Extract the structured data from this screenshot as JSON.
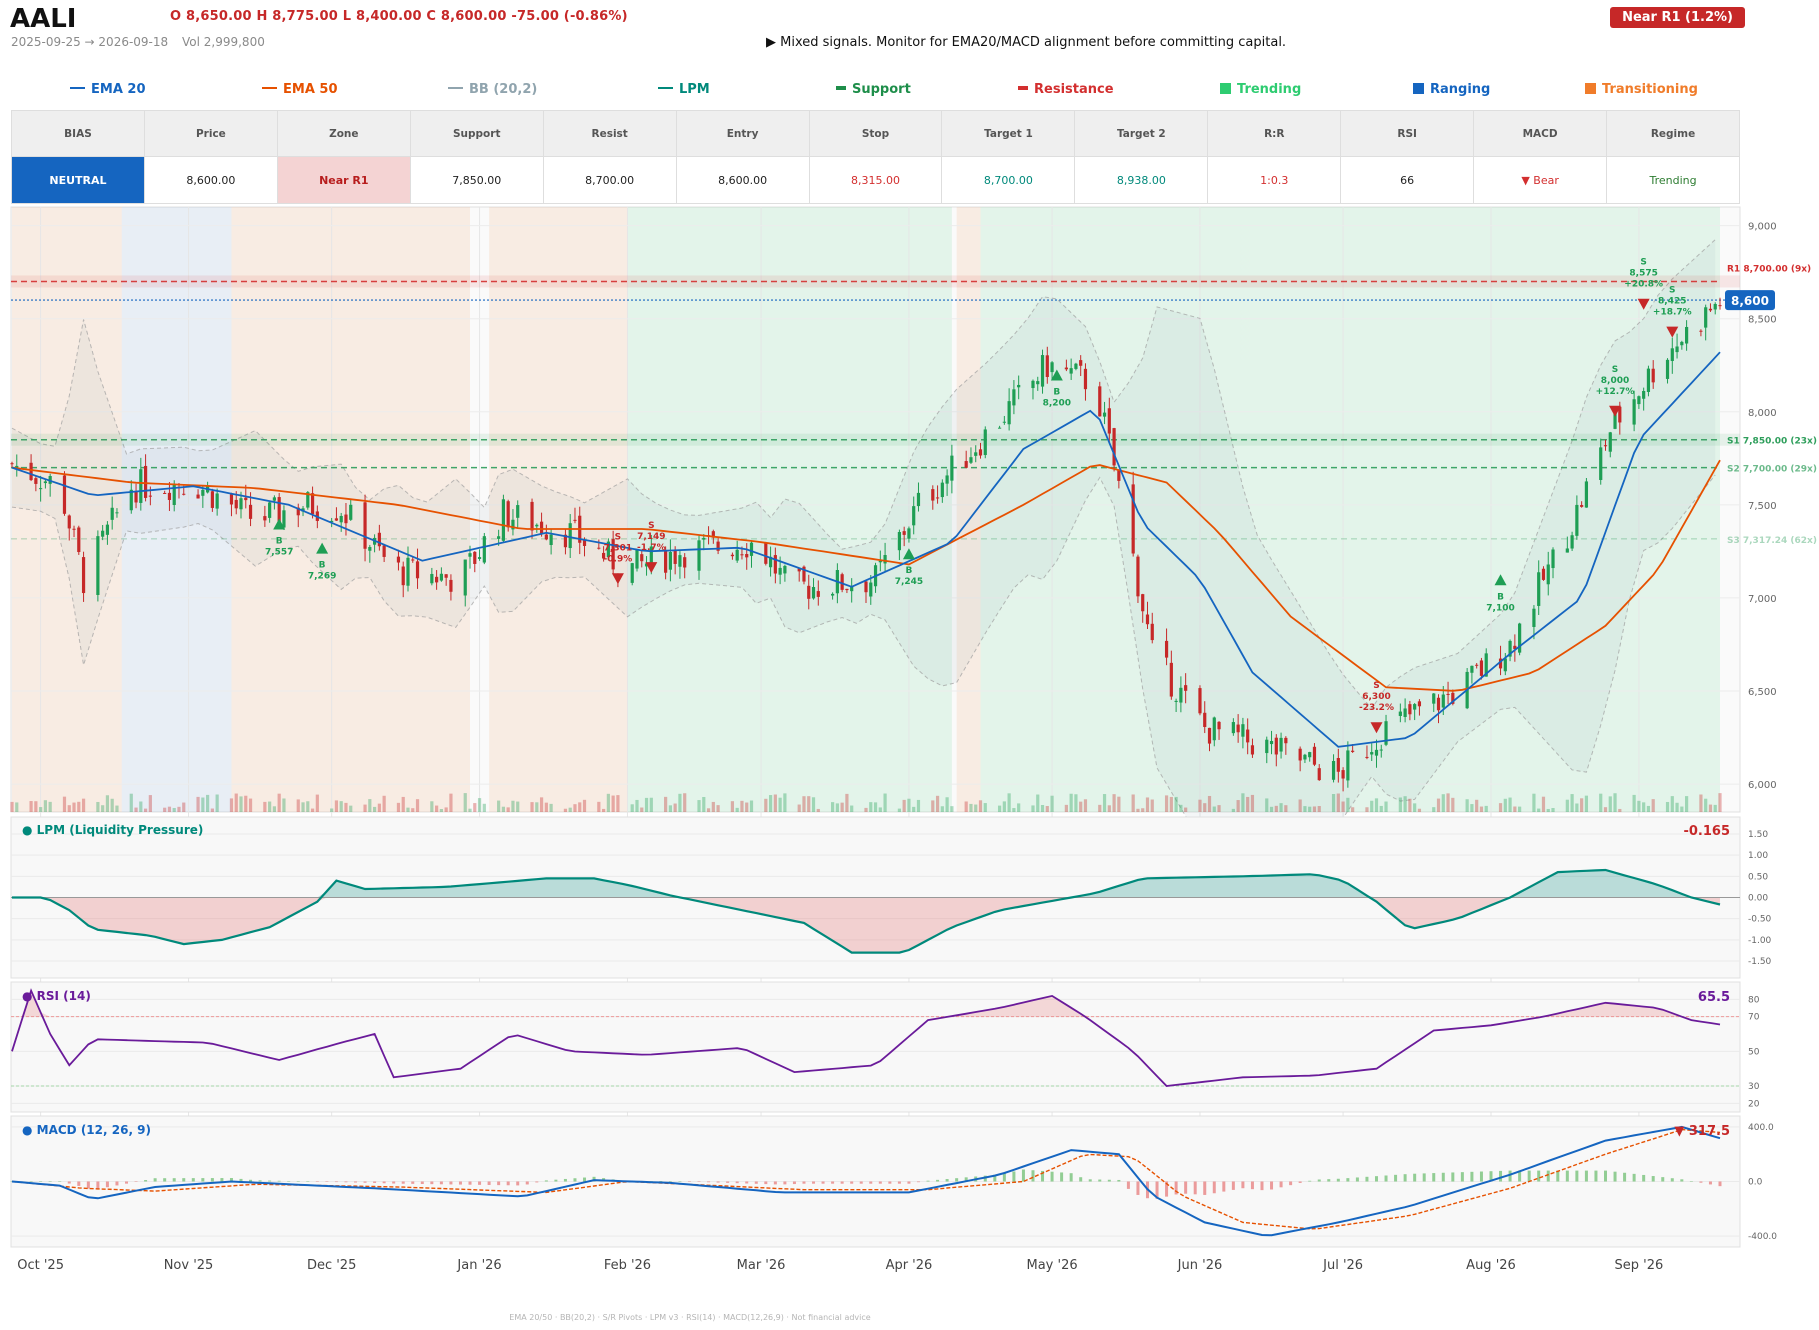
{
  "header": {
    "ticker": "AALI",
    "ohlc": "O 8,650.00   H 8,775.00   L 8,400.00   C 8,600.00   -75.00  (-0.86%)",
    "date_range": "2025-09-25 → 2026-09-18",
    "volume": "Vol 2,999,800",
    "signal": "▶  Mixed signals. Monitor for EMA20/MACD alignment before committing capital.",
    "badge": "Near R1  (1.2%)"
  },
  "colors": {
    "up": "#1e9e54",
    "down": "#c62828",
    "ema20": "#1565c0",
    "ema50": "#e65100",
    "lpm": "#00897b",
    "rsi": "#6a1b9a",
    "macd": "#1565c0",
    "signal_line": "#e65100",
    "trending": "#2ecc71",
    "ranging": "#1565c0",
    "transitioning": "#f07c2a"
  },
  "legend": [
    {
      "label": "EMA 20",
      "color": "#1565c0",
      "kind": "line"
    },
    {
      "label": "EMA 50",
      "color": "#e65100",
      "kind": "line"
    },
    {
      "label": "BB (20,2)",
      "color": "#90a4ae",
      "kind": "line"
    },
    {
      "label": "LPM",
      "color": "#00897b",
      "kind": "line"
    },
    {
      "label": "Support",
      "color": "#1e8e4a",
      "kind": "bar"
    },
    {
      "label": "Resistance",
      "color": "#d32f2f",
      "kind": "bar"
    },
    {
      "label": "Trending",
      "color": "#2ecc71",
      "kind": "sq"
    },
    {
      "label": "Ranging",
      "color": "#1565c0",
      "kind": "sq"
    },
    {
      "label": "Transitioning",
      "color": "#f07c2a",
      "kind": "sq"
    }
  ],
  "table": {
    "headers": [
      "BIAS",
      "Price",
      "Zone",
      "Support",
      "Resist",
      "Entry",
      "Stop",
      "Target 1",
      "Target 2",
      "R:R",
      "RSI",
      "MACD",
      "Regime"
    ],
    "values": [
      "NEUTRAL",
      "8,600.00",
      "Near R1",
      "7,850.00",
      "8,700.00",
      "8,600.00",
      "8,315.00",
      "8,700.00",
      "8,938.00",
      "1:0.3",
      "66",
      "▼ Bear",
      "Trending"
    ]
  },
  "panels": {
    "lpm_title": "● LPM (Liquidity Pressure)",
    "lpm_value": "-0.165",
    "rsi_title": "● RSI (14)",
    "rsi_value": "65.5",
    "macd_title": "● MACD (12, 26, 9)",
    "macd_value": "▼ 317.5"
  },
  "footer": "EMA 20/50  ·  BB(20,2)  ·  S/R Pivots  ·  LPM v3  ·  RSI(14)  ·  MACD(12,26,9)  ·  Not financial advice",
  "chart_data": {
    "type": "candlestick",
    "x_ticks": [
      "Oct '25",
      "Nov '25",
      "Dec '25",
      "Jan '26",
      "Feb '26",
      "Mar '26",
      "Apr '26",
      "May '26",
      "Jun '26",
      "Jul '26",
      "Aug '26",
      "Sep '26"
    ],
    "y_ticks": [
      "9,000",
      "8,500",
      "8,000",
      "7,500",
      "7,000",
      "6,500",
      "6,000"
    ],
    "ylim": [
      5850,
      9100
    ],
    "last_price": "8,600",
    "levels": [
      {
        "label": "R1 8,700.00 (9x)",
        "value": 8700,
        "kind": "resistance"
      },
      {
        "label": "S1 7,850.00 (23x)",
        "value": 7850,
        "kind": "support"
      },
      {
        "label": "S2 7,700.00 (29x)",
        "value": 7700,
        "kind": "support"
      },
      {
        "label": "S3 7,317.24 (62x)",
        "value": 7317.24,
        "kind": "support"
      }
    ],
    "regimes": [
      {
        "start": "2025-09-25",
        "end": "2025-10-18",
        "type": "transitioning"
      },
      {
        "start": "2025-10-18",
        "end": "2025-11-10",
        "type": "ranging"
      },
      {
        "start": "2025-11-10",
        "end": "2025-12-30",
        "type": "transitioning"
      },
      {
        "start": "2026-01-03",
        "end": "2026-02-01",
        "type": "transitioning"
      },
      {
        "start": "2026-02-01",
        "end": "2026-04-10",
        "type": "trending"
      },
      {
        "start": "2026-04-11",
        "end": "2026-04-16",
        "type": "transitioning"
      },
      {
        "start": "2026-04-16",
        "end": "2026-09-18",
        "type": "trending"
      }
    ],
    "price_keypoints": [
      [
        "2025-09-25",
        7720
      ],
      [
        "2025-10-05",
        7600
      ],
      [
        "2025-10-10",
        7100
      ],
      [
        "2025-10-20",
        7600
      ],
      [
        "2025-11-02",
        7620
      ],
      [
        "2025-11-15",
        7420
      ],
      [
        "2025-11-25",
        7500
      ],
      [
        "2025-12-03",
        7480
      ],
      [
        "2025-12-14",
        7150
      ],
      [
        "2025-12-28",
        7100
      ],
      [
        "2026-01-06",
        7450
      ],
      [
        "2026-01-20",
        7350
      ],
      [
        "2026-02-01",
        7150
      ],
      [
        "2026-02-12",
        7250
      ],
      [
        "2026-02-28",
        7300
      ],
      [
        "2026-03-07",
        7050
      ],
      [
        "2026-03-25",
        7100
      ],
      [
        "2026-04-03",
        7500
      ],
      [
        "2026-04-18",
        7900
      ],
      [
        "2026-04-30",
        8250
      ],
      [
        "2026-05-10",
        8150
      ],
      [
        "2026-05-15",
        7600
      ],
      [
        "2026-05-22",
        6700
      ],
      [
        "2026-06-02",
        6300
      ],
      [
        "2026-06-15",
        6200
      ],
      [
        "2026-06-30",
        6050
      ],
      [
        "2026-07-10",
        6300
      ],
      [
        "2026-07-25",
        6500
      ],
      [
        "2026-08-05",
        6750
      ],
      [
        "2026-08-18",
        7400
      ],
      [
        "2026-08-26",
        7900
      ],
      [
        "2026-09-06",
        8300
      ],
      [
        "2026-09-18",
        8600
      ]
    ],
    "ema20_keypoints": [
      [
        "2025-09-25",
        7700
      ],
      [
        "2025-10-12",
        7550
      ],
      [
        "2025-11-02",
        7600
      ],
      [
        "2025-11-22",
        7500
      ],
      [
        "2025-12-20",
        7200
      ],
      [
        "2026-01-15",
        7350
      ],
      [
        "2026-02-05",
        7250
      ],
      [
        "2026-02-25",
        7270
      ],
      [
        "2026-03-20",
        7060
      ],
      [
        "2026-04-10",
        7300
      ],
      [
        "2026-04-25",
        7800
      ],
      [
        "2026-05-10",
        8020
      ],
      [
        "2026-05-20",
        7400
      ],
      [
        "2026-06-01",
        7100
      ],
      [
        "2026-06-12",
        6600
      ],
      [
        "2026-06-30",
        6200
      ],
      [
        "2026-07-15",
        6250
      ],
      [
        "2026-08-05",
        6700
      ],
      [
        "2026-08-20",
        7000
      ],
      [
        "2026-09-01",
        7850
      ],
      [
        "2026-09-18",
        8320
      ]
    ],
    "ema50_keypoints": [
      [
        "2025-09-25",
        7700
      ],
      [
        "2025-10-20",
        7620
      ],
      [
        "2025-11-15",
        7590
      ],
      [
        "2025-12-15",
        7500
      ],
      [
        "2026-01-10",
        7370
      ],
      [
        "2026-02-05",
        7370
      ],
      [
        "2026-03-01",
        7300
      ],
      [
        "2026-04-01",
        7180
      ],
      [
        "2026-04-25",
        7500
      ],
      [
        "2026-05-10",
        7720
      ],
      [
        "2026-05-25",
        7620
      ],
      [
        "2026-06-05",
        7350
      ],
      [
        "2026-06-20",
        6900
      ],
      [
        "2026-07-10",
        6520
      ],
      [
        "2026-07-25",
        6500
      ],
      [
        "2026-08-10",
        6600
      ],
      [
        "2026-08-25",
        6850
      ],
      [
        "2026-09-05",
        7150
      ],
      [
        "2026-09-18",
        7740
      ]
    ],
    "signals": [
      {
        "date": "2025-11-20",
        "side": "B",
        "price": "7,557",
        "pct": "",
        "value": 7400
      },
      {
        "date": "2025-11-29",
        "side": "B",
        "price": "7,269",
        "pct": "",
        "value": 7270
      },
      {
        "date": "2026-01-30",
        "side": "S",
        "price": "7,301",
        "pct": "-0.9%",
        "value": 7100
      },
      {
        "date": "2026-02-06",
        "side": "S",
        "price": "7,149",
        "pct": "-1.7%",
        "value": 7160
      },
      {
        "date": "2026-04-01",
        "side": "B",
        "price": "7,245",
        "pct": "",
        "value": 7240
      },
      {
        "date": "2026-05-02",
        "side": "B",
        "price": "8,200",
        "pct": "",
        "value": 8200
      },
      {
        "date": "2026-07-08",
        "side": "S",
        "price": "6,300",
        "pct": "-23.2%",
        "value": 6300
      },
      {
        "date": "2026-08-03",
        "side": "B",
        "price": "7,100",
        "pct": "",
        "value": 7100
      },
      {
        "date": "2026-08-27",
        "side": "S",
        "price": "8,000",
        "pct": "+12.7%",
        "value": 8000
      },
      {
        "date": "2026-09-02",
        "side": "S",
        "price": "8,575",
        "pct": "+20.8%",
        "value": 8575
      },
      {
        "date": "2026-09-08",
        "side": "S",
        "price": "8,425",
        "pct": "+18.7%",
        "value": 8425
      }
    ],
    "lpm": {
      "ylim": [
        -1.9,
        1.9
      ],
      "ticks": [
        "1.50",
        "1.00",
        "0.50",
        "0.00",
        "-0.50",
        "-1.00",
        "-1.50"
      ],
      "keypoints": [
        [
          "2025-09-25",
          0
        ],
        [
          "2025-10-02",
          0
        ],
        [
          "2025-10-07",
          -0.3
        ],
        [
          "2025-10-12",
          -0.75
        ],
        [
          "2025-10-24",
          -0.9
        ],
        [
          "2025-10-31",
          -1.1
        ],
        [
          "2025-11-08",
          -1.0
        ],
        [
          "2025-11-18",
          -0.7
        ],
        [
          "2025-11-28",
          -0.1
        ],
        [
          "2025-12-02",
          0.4
        ],
        [
          "2025-12-08",
          0.2
        ],
        [
          "2025-12-25",
          0.25
        ],
        [
          "2026-01-15",
          0.45
        ],
        [
          "2026-01-25",
          0.45
        ],
        [
          "2026-02-01",
          0.3
        ],
        [
          "2026-02-10",
          0.05
        ],
        [
          "2026-02-25",
          -0.3
        ],
        [
          "2026-03-10",
          -0.6
        ],
        [
          "2026-03-20",
          -1.3
        ],
        [
          "2026-03-31",
          -1.3
        ],
        [
          "2026-04-10",
          -0.7
        ],
        [
          "2026-04-20",
          -0.3
        ],
        [
          "2026-04-30",
          -0.1
        ],
        [
          "2026-05-10",
          0.1
        ],
        [
          "2026-05-20",
          0.45
        ],
        [
          "2026-06-10",
          0.5
        ],
        [
          "2026-06-25",
          0.55
        ],
        [
          "2026-07-01",
          0.4
        ],
        [
          "2026-07-08",
          -0.1
        ],
        [
          "2026-07-15",
          -0.75
        ],
        [
          "2026-07-25",
          -0.5
        ],
        [
          "2026-08-05",
          0.0
        ],
        [
          "2026-08-15",
          0.6
        ],
        [
          "2026-08-25",
          0.65
        ],
        [
          "2026-09-05",
          0.3
        ],
        [
          "2026-09-12",
          0.0
        ],
        [
          "2026-09-18",
          -0.165
        ]
      ]
    },
    "rsi": {
      "ylim": [
        15,
        90
      ],
      "ticks": [
        "80",
        "70",
        "50",
        "30",
        "20"
      ],
      "overbought": 70,
      "oversold": 30,
      "keypoints": [
        [
          "2025-09-25",
          50
        ],
        [
          "2025-09-29",
          85
        ],
        [
          "2025-10-03",
          60
        ],
        [
          "2025-10-07",
          42
        ],
        [
          "2025-10-12",
          57
        ],
        [
          "2025-11-05",
          55
        ],
        [
          "2025-11-20",
          45
        ],
        [
          "2025-12-03",
          55
        ],
        [
          "2025-12-10",
          60
        ],
        [
          "2025-12-14",
          35
        ],
        [
          "2025-12-28",
          40
        ],
        [
          "2026-01-08",
          60
        ],
        [
          "2026-01-20",
          50
        ],
        [
          "2026-02-05",
          48
        ],
        [
          "2026-02-25",
          52
        ],
        [
          "2026-03-08",
          38
        ],
        [
          "2026-03-25",
          42
        ],
        [
          "2026-04-05",
          68
        ],
        [
          "2026-04-20",
          75
        ],
        [
          "2026-05-01",
          82
        ],
        [
          "2026-05-08",
          70
        ],
        [
          "2026-05-18",
          50
        ],
        [
          "2026-05-25",
          30
        ],
        [
          "2026-06-10",
          35
        ],
        [
          "2026-06-25",
          36
        ],
        [
          "2026-07-08",
          40
        ],
        [
          "2026-07-20",
          62
        ],
        [
          "2026-08-01",
          65
        ],
        [
          "2026-08-12",
          70
        ],
        [
          "2026-08-25",
          78
        ],
        [
          "2026-09-05",
          75
        ],
        [
          "2026-09-12",
          68
        ],
        [
          "2026-09-18",
          65.5
        ]
      ]
    },
    "macd": {
      "ylim": [
        -480,
        480
      ],
      "ticks": [
        "400.0",
        "0.0",
        "-400.0"
      ],
      "macd_keypoints": [
        [
          "2025-09-25",
          0
        ],
        [
          "2025-10-05",
          -30
        ],
        [
          "2025-10-12",
          -130
        ],
        [
          "2025-10-25",
          -40
        ],
        [
          "2025-11-10",
          0
        ],
        [
          "2025-12-10",
          -50
        ],
        [
          "2026-01-10",
          -110
        ],
        [
          "2026-01-25",
          10
        ],
        [
          "2026-02-10",
          -10
        ],
        [
          "2026-03-05",
          -80
        ],
        [
          "2026-04-01",
          -80
        ],
        [
          "2026-04-20",
          50
        ],
        [
          "2026-05-05",
          230
        ],
        [
          "2026-05-15",
          200
        ],
        [
          "2026-05-22",
          -100
        ],
        [
          "2026-06-02",
          -300
        ],
        [
          "2026-06-15",
          -400
        ],
        [
          "2026-06-30",
          -300
        ],
        [
          "2026-07-15",
          -180
        ],
        [
          "2026-08-05",
          50
        ],
        [
          "2026-08-25",
          300
        ],
        [
          "2026-09-10",
          400
        ],
        [
          "2026-09-18",
          317.5
        ]
      ],
      "signal_keypoints": [
        [
          "2025-09-25",
          0
        ],
        [
          "2025-10-10",
          -50
        ],
        [
          "2025-10-25",
          -70
        ],
        [
          "2025-11-15",
          -20
        ],
        [
          "2025-12-15",
          -40
        ],
        [
          "2026-01-15",
          -80
        ],
        [
          "2026-02-01",
          0
        ],
        [
          "2026-03-10",
          -60
        ],
        [
          "2026-04-05",
          -60
        ],
        [
          "2026-04-25",
          0
        ],
        [
          "2026-05-08",
          200
        ],
        [
          "2026-05-18",
          180
        ],
        [
          "2026-05-28",
          -100
        ],
        [
          "2026-06-10",
          -300
        ],
        [
          "2026-06-25",
          -350
        ],
        [
          "2026-07-15",
          -250
        ],
        [
          "2026-08-05",
          -50
        ],
        [
          "2026-08-25",
          200
        ],
        [
          "2026-09-10",
          380
        ],
        [
          "2026-09-18",
          360
        ]
      ]
    }
  }
}
